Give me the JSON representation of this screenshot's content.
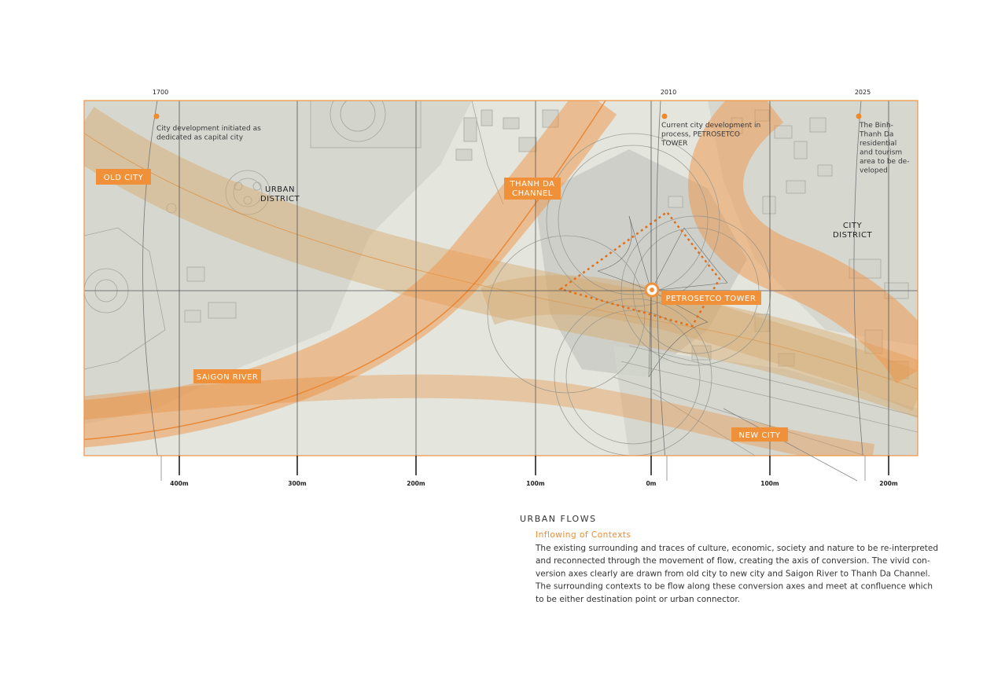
{
  "timeline": [
    {
      "year": "1700",
      "note": [
        "City development initiated as",
        "dedicated as capital city"
      ]
    },
    {
      "year": "2010",
      "note": [
        "Current city development in",
        "process, PETROSETCO",
        "TOWER"
      ]
    },
    {
      "year": "2025",
      "note": [
        "The Binh-",
        "Thanh Da",
        "residential",
        "and tourism",
        "area to be de-",
        "veloped"
      ]
    }
  ],
  "map_labels": {
    "old_city": [
      "OLD CITY"
    ],
    "urban_district": [
      "URBAN",
      "DISTRICT"
    ],
    "thanh_da_channel": [
      "THANH DA",
      "CHANNEL"
    ],
    "city_district": [
      "CITY",
      "DISTRICT"
    ],
    "petrosetco_tower": [
      "PETROSETCO TOWER"
    ],
    "saigon_river": [
      "SAIGON RIVER"
    ],
    "new_city": [
      "NEW CITY"
    ]
  },
  "scale": [
    "400m",
    "300m",
    "200m",
    "100m",
    "0m",
    "100m",
    "200m"
  ],
  "section": {
    "title": "URBAN FLOWS",
    "subtitle": "Inflowing of Contexts",
    "paragraph": [
      "The existing surrounding and traces of culture, economic, society and nature to be re-interpreted",
      "and reconnected through the movement of flow, creating the axis of conversion. The vivid con-",
      "version axes clearly are drawn from old city to new city and Saigon River to Thanh Da Channel.",
      "The surrounding contexts to be flow along these conversion axes and meet at confluence which",
      "to be either destination point or urban connector."
    ]
  }
}
